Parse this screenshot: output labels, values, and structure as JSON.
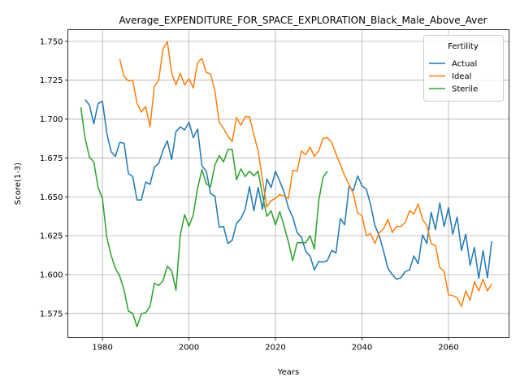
{
  "chart_data": {
    "type": "line",
    "title": "Average_EXPENDITURE_FOR_SPACE_EXPLORATION_Black_Male_Above_Aver",
    "xlabel": "Years",
    "ylabel": "Score(1-3)",
    "xlim": [
      1972,
      2074
    ],
    "ylim": [
      1.5595,
      1.7575
    ],
    "xticks": [
      1980,
      2000,
      2020,
      2040,
      2060
    ],
    "yticks": [
      1.575,
      1.6,
      1.625,
      1.65,
      1.675,
      1.7,
      1.725,
      1.75
    ],
    "grid": true,
    "legend": {
      "title": "Fertility",
      "position": "upper right"
    },
    "series": [
      {
        "name": "Actual",
        "color": "#1f77b4",
        "x": [
          1976,
          1977,
          1978,
          1979,
          1980,
          1981,
          1982,
          1983,
          1984,
          1985,
          1986,
          1987,
          1988,
          1989,
          1990,
          1991,
          1992,
          1993,
          1994,
          1995,
          1996,
          1997,
          1998,
          1999,
          2000,
          2001,
          2002,
          2003,
          2004,
          2005,
          2006,
          2007,
          2008,
          2009,
          2010,
          2011,
          2012,
          2013,
          2014,
          2015,
          2016,
          2017,
          2018,
          2019,
          2020,
          2021,
          2022,
          2023,
          2024,
          2025,
          2026,
          2027,
          2028,
          2029,
          2030,
          2031,
          2032,
          2033,
          2034,
          2035,
          2036,
          2037,
          2038,
          2039,
          2040,
          2041,
          2042,
          2043,
          2044,
          2045,
          2046,
          2047,
          2048,
          2049,
          2050,
          2051,
          2052,
          2053,
          2054,
          2055,
          2056,
          2057,
          2058,
          2059,
          2060,
          2061,
          2062,
          2063,
          2064,
          2065,
          2066,
          2067,
          2068,
          2069,
          2070
        ],
        "y": [
          1.7125,
          1.709,
          1.697,
          1.71,
          1.7115,
          1.691,
          1.679,
          1.676,
          1.685,
          1.6845,
          1.665,
          1.663,
          1.648,
          1.648,
          1.6595,
          1.658,
          1.669,
          1.6715,
          1.68,
          1.686,
          1.674,
          1.692,
          1.695,
          1.693,
          1.698,
          1.688,
          1.6935,
          1.67,
          1.6665,
          1.652,
          1.6505,
          1.6305,
          1.631,
          1.62,
          1.622,
          1.633,
          1.636,
          1.642,
          1.6565,
          1.641,
          1.656,
          1.642,
          1.6615,
          1.656,
          1.6665,
          1.66,
          1.653,
          1.643,
          1.637,
          1.627,
          1.624,
          1.615,
          1.612,
          1.603,
          1.6085,
          1.608,
          1.609,
          1.6155,
          1.614,
          1.636,
          1.632,
          1.6565,
          1.654,
          1.6635,
          1.657,
          1.655,
          1.645,
          1.6315,
          1.625,
          1.615,
          1.604,
          1.6,
          1.597,
          1.598,
          1.602,
          1.603,
          1.612,
          1.607,
          1.6255,
          1.62,
          1.64,
          1.629,
          1.646,
          1.631,
          1.643,
          1.626,
          1.637,
          1.6155,
          1.626,
          1.606,
          1.6175,
          1.5975,
          1.6155,
          1.598,
          1.6215
        ]
      },
      {
        "name": "Ideal",
        "color": "#ff7f0e",
        "x": [
          1984,
          1985,
          1986,
          1987,
          1988,
          1989,
          1990,
          1991,
          1992,
          1993,
          1994,
          1995,
          1996,
          1997,
          1998,
          1999,
          2000,
          2001,
          2002,
          2003,
          2004,
          2005,
          2006,
          2007,
          2008,
          2009,
          2010,
          2011,
          2012,
          2013,
          2014,
          2015,
          2016,
          2017,
          2018,
          2019,
          2020,
          2021,
          2022,
          2023,
          2024,
          2025,
          2026,
          2027,
          2028,
          2029,
          2030,
          2031,
          2032,
          2033,
          2034,
          2035,
          2036,
          2037,
          2038,
          2039,
          2040,
          2041,
          2042,
          2043,
          2044,
          2045,
          2046,
          2047,
          2048,
          2049,
          2050,
          2051,
          2052,
          2053,
          2054,
          2055,
          2056,
          2057,
          2058,
          2059,
          2060,
          2061,
          2062,
          2063,
          2064,
          2065,
          2066,
          2067,
          2068,
          2069,
          2070
        ],
        "y": [
          1.7385,
          1.7275,
          1.7245,
          1.725,
          1.71,
          1.7045,
          1.708,
          1.695,
          1.721,
          1.725,
          1.745,
          1.75,
          1.7295,
          1.722,
          1.7295,
          1.722,
          1.726,
          1.72,
          1.7365,
          1.739,
          1.73,
          1.729,
          1.718,
          1.698,
          1.694,
          1.689,
          1.6855,
          1.701,
          1.696,
          1.7015,
          1.7015,
          1.69,
          1.6795,
          1.661,
          1.6435,
          1.6475,
          1.649,
          1.6515,
          1.6505,
          1.649,
          1.667,
          1.6665,
          1.6795,
          1.677,
          1.682,
          1.676,
          1.6795,
          1.6875,
          1.688,
          1.685,
          1.6775,
          1.671,
          1.6635,
          1.658,
          1.652,
          1.6395,
          1.638,
          1.625,
          1.6265,
          1.62,
          1.627,
          1.6295,
          1.6355,
          1.627,
          1.631,
          1.631,
          1.6335,
          1.641,
          1.639,
          1.6455,
          1.6355,
          1.6315,
          1.62,
          1.6185,
          1.6045,
          1.602,
          1.587,
          1.5865,
          1.585,
          1.5795,
          1.5895,
          1.5835,
          1.5955,
          1.5895,
          1.597,
          1.5895,
          1.594
        ]
      },
      {
        "name": "Sterile",
        "color": "#2ca02c",
        "x": [
          1975,
          1976,
          1977,
          1978,
          1979,
          1980,
          1981,
          1982,
          1983,
          1984,
          1985,
          1986,
          1987,
          1988,
          1989,
          1990,
          1991,
          1992,
          1993,
          1994,
          1995,
          1996,
          1997,
          1998,
          1999,
          2000,
          2001,
          2002,
          2003,
          2004,
          2005,
          2006,
          2007,
          2008,
          2009,
          2010,
          2011,
          2012,
          2013,
          2014,
          2015,
          2016,
          2017,
          2018,
          2019,
          2020,
          2021,
          2022,
          2023,
          2024,
          2025,
          2026,
          2027,
          2028,
          2029,
          2030,
          2031,
          2032
        ],
        "y": [
          1.7075,
          1.6875,
          1.6755,
          1.6725,
          1.656,
          1.649,
          1.624,
          1.6125,
          1.604,
          1.599,
          1.59,
          1.5765,
          1.575,
          1.5665,
          1.575,
          1.5755,
          1.5795,
          1.5945,
          1.593,
          1.596,
          1.6055,
          1.6025,
          1.59,
          1.6255,
          1.6385,
          1.631,
          1.6385,
          1.6555,
          1.6675,
          1.6585,
          1.6565,
          1.6705,
          1.6765,
          1.6725,
          1.6805,
          1.6805,
          1.661,
          1.668,
          1.663,
          1.6665,
          1.6635,
          1.6665,
          1.651,
          1.6375,
          1.641,
          1.632,
          1.6405,
          1.631,
          1.621,
          1.609,
          1.6205,
          1.6205,
          1.6205,
          1.625,
          1.6165,
          1.6475,
          1.6625,
          1.6665
        ]
      }
    ]
  }
}
